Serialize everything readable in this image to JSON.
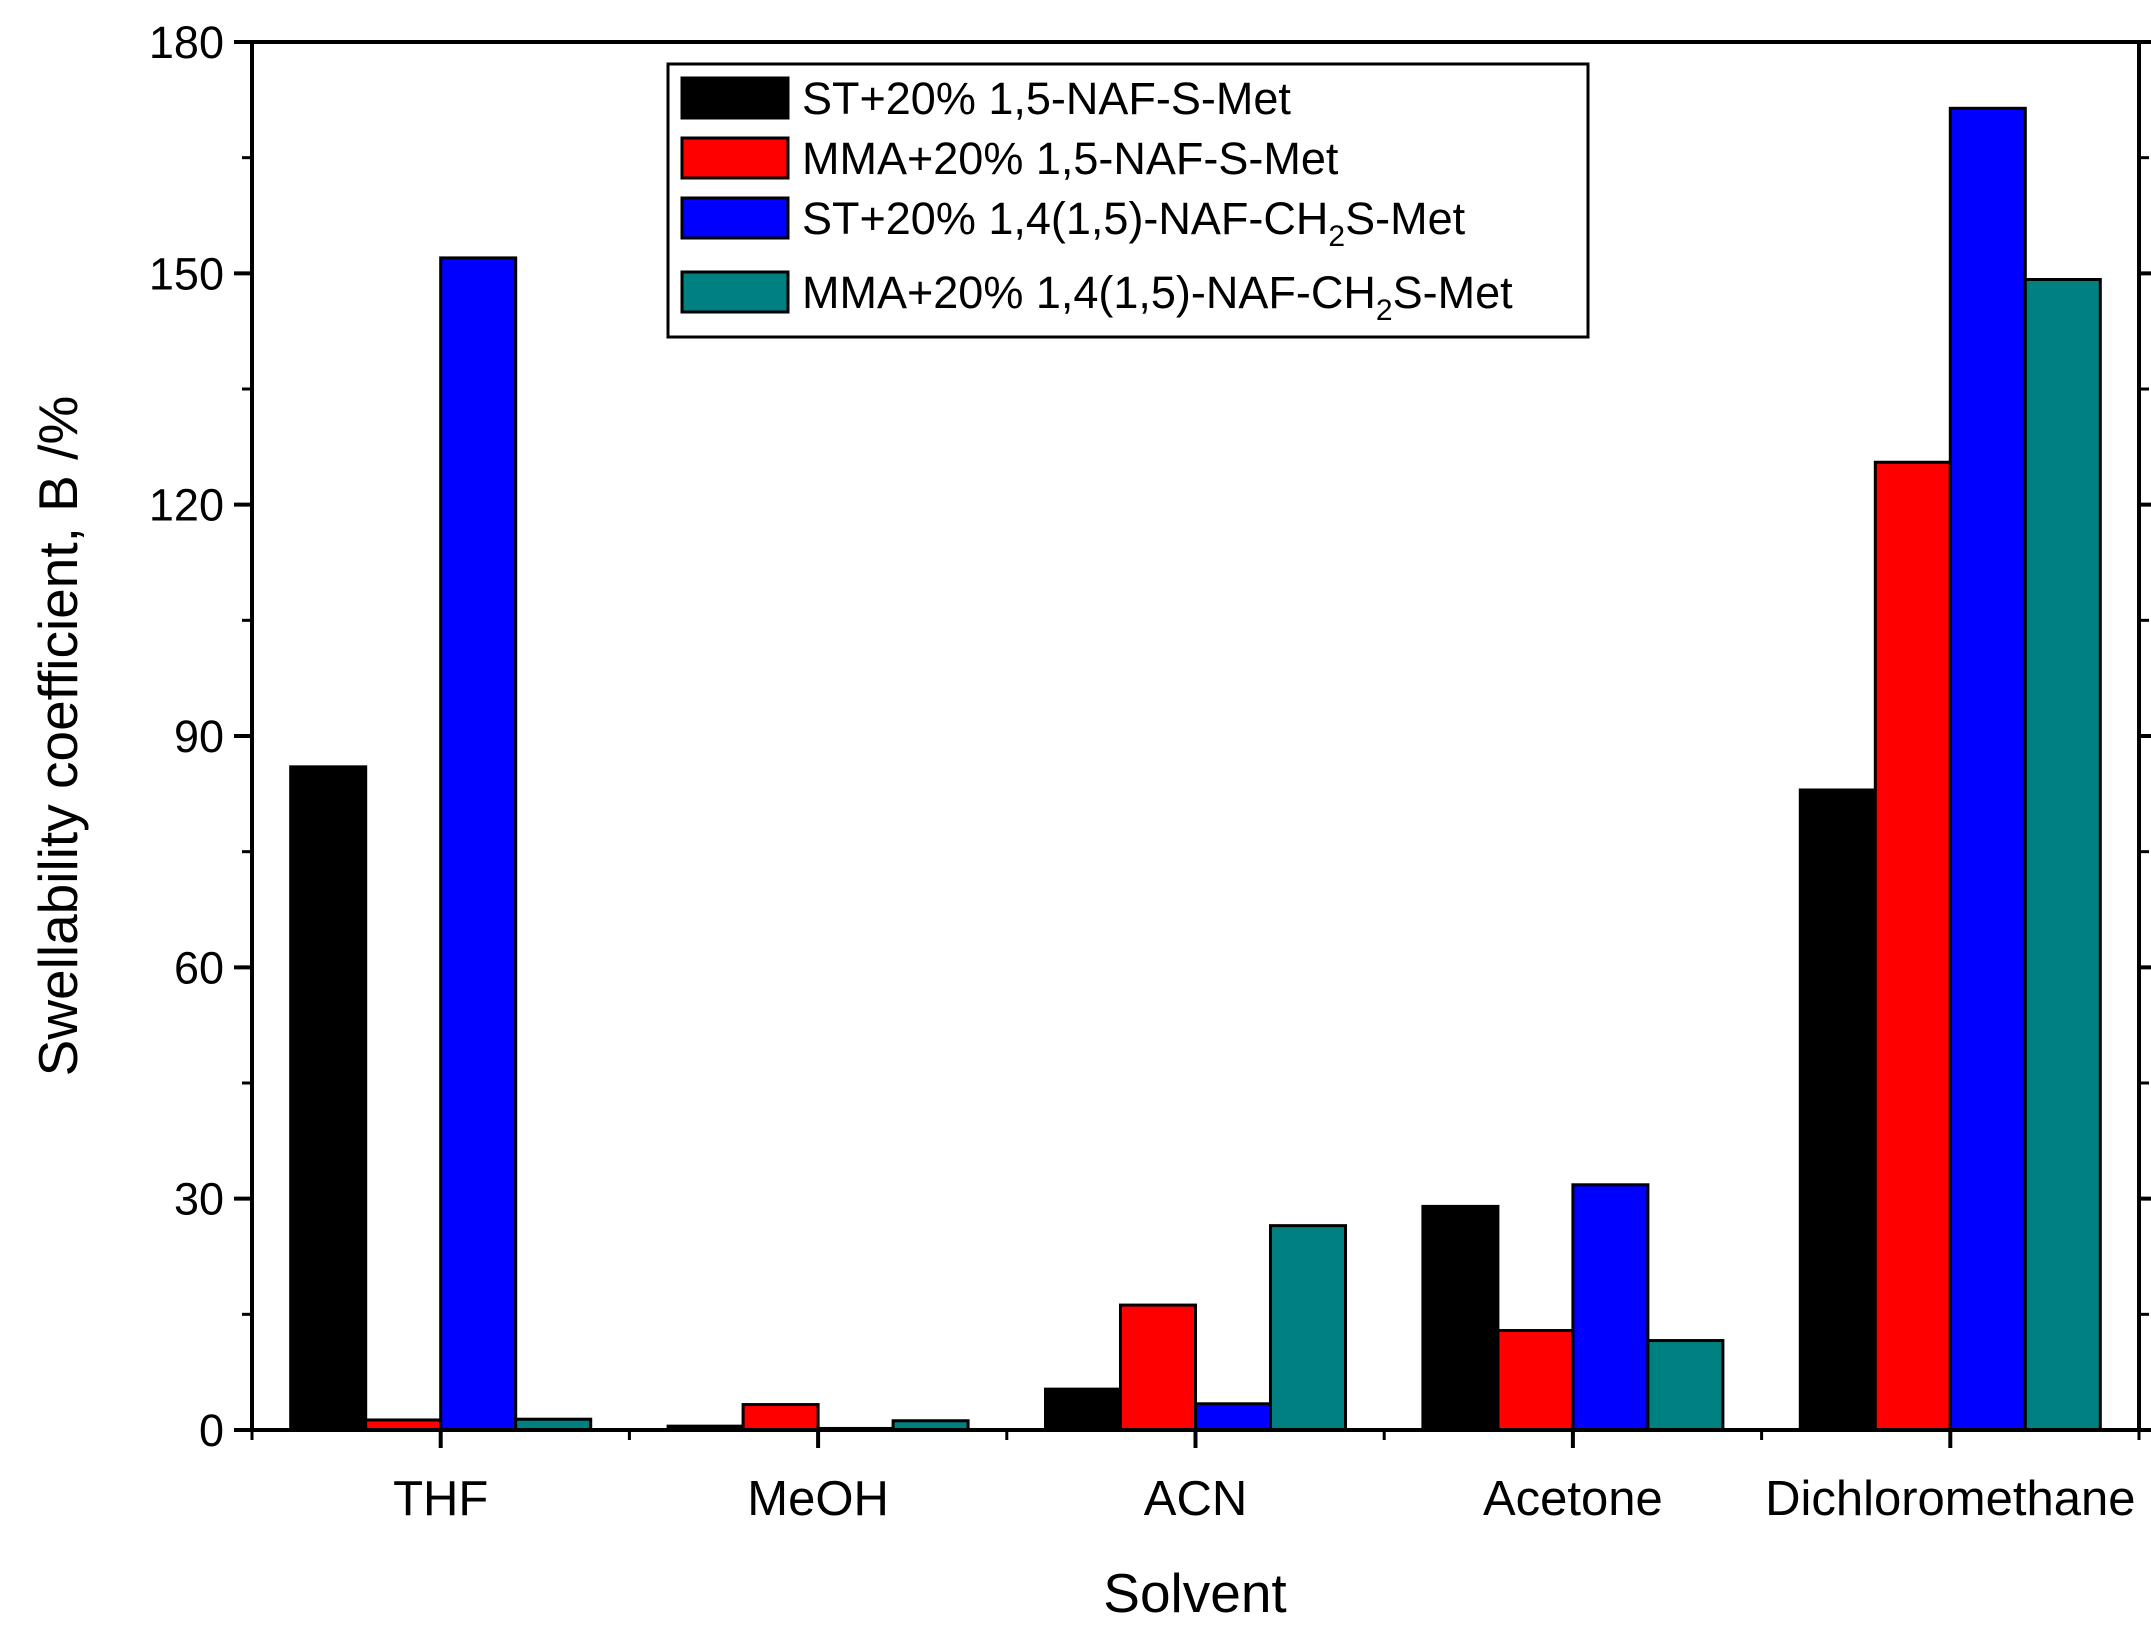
{
  "chart_data": {
    "type": "bar",
    "title": "",
    "xlabel": "Solvent",
    "ylabel": "Swellability coefficient, B /%",
    "ylim": [
      0,
      180
    ],
    "yticks": [
      0,
      30,
      60,
      90,
      120,
      150,
      180
    ],
    "categories": [
      "THF",
      "MeOH",
      "ACN",
      "Acetone",
      "Dichloromethane"
    ],
    "legend_placement": "top-center",
    "grid": false,
    "series": [
      {
        "name": "ST+20% 1,5-NAF-S-Met",
        "color": "#000000",
        "values": [
          86,
          0.5,
          5.3,
          29,
          83
        ]
      },
      {
        "name": "MMA+20% 1,5-NAF-S-Met",
        "color": "#ff0000",
        "values": [
          1.3,
          3.3,
          16.2,
          12.9,
          125.5
        ]
      },
      {
        "name": "ST+20% 1,4(1,5)-NAF-CH2S-Met",
        "name_parts": [
          "ST+20% 1,4(1,5)-NAF-CH",
          "2",
          "S-Met"
        ],
        "color": "#0000ff",
        "values": [
          152,
          0.2,
          3.4,
          31.8,
          171.4
        ]
      },
      {
        "name": "MMA+20% 1,4(1,5)-NAF-CH2S-Met",
        "name_parts": [
          "MMA+20% 1,4(1,5)-NAF-CH",
          "2",
          "S-Met"
        ],
        "color": "#008080",
        "values": [
          1.4,
          1.2,
          26.5,
          11.6,
          149.2
        ]
      }
    ]
  }
}
